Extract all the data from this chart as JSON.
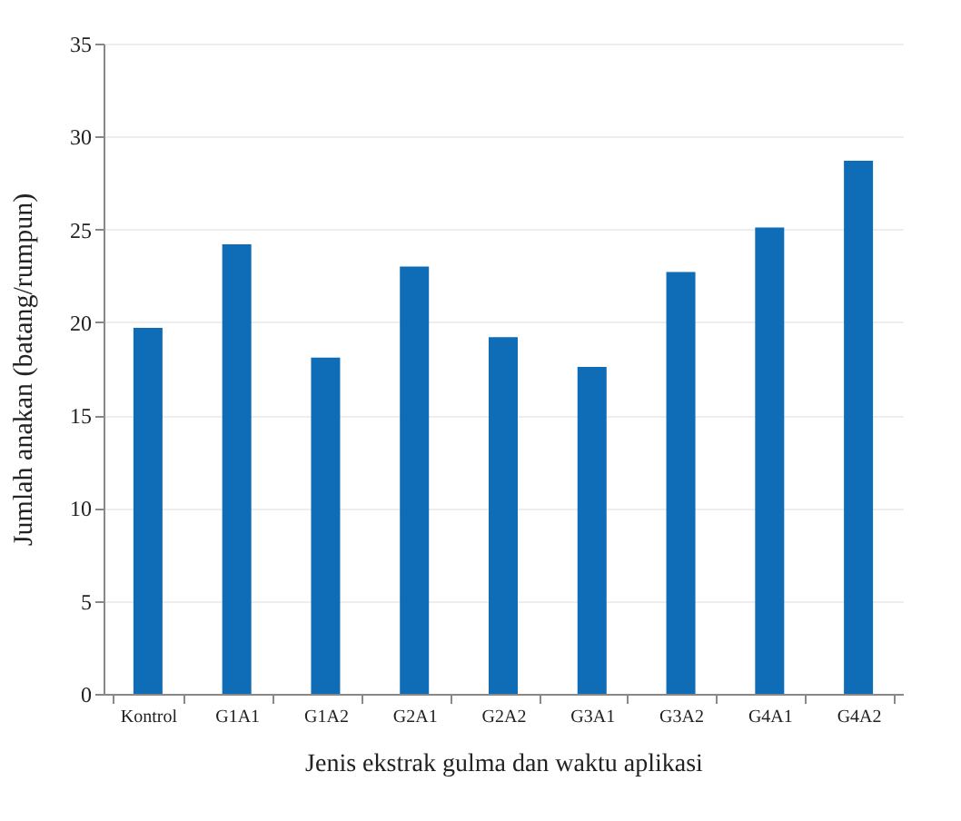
{
  "chart_data": {
    "type": "bar",
    "xlabel": "Jenis ekstrak gulma dan waktu aplikasi",
    "ylabel": "Jumlah anakan (batang/rumpun)",
    "categories": [
      "Kontrol",
      "G1A1",
      "G1A2",
      "G2A1",
      "G2A2",
      "G3A1",
      "G3A2",
      "G4A1",
      "G4A2"
    ],
    "values": [
      19.7,
      24.2,
      18.1,
      23.0,
      19.2,
      17.6,
      22.7,
      25.1,
      28.7
    ],
    "color": "#0f6cb6",
    "ylim": [
      0,
      35
    ],
    "yticks": [
      0,
      5,
      10,
      15,
      20,
      25,
      30,
      35
    ],
    "grid": "y"
  }
}
